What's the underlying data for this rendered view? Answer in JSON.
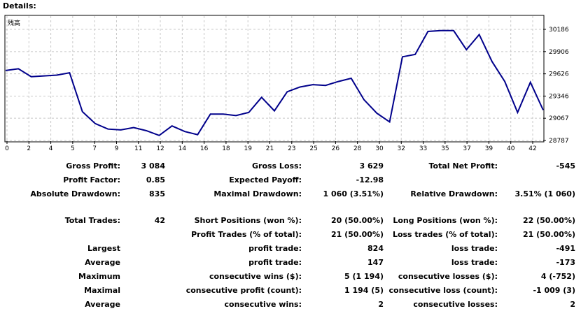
{
  "header": {
    "title": "Details:"
  },
  "chart_data": {
    "type": "line",
    "label": "残高",
    "x": [
      0,
      1,
      2,
      3,
      4,
      5,
      6,
      7,
      8,
      9,
      10,
      11,
      12,
      13,
      14,
      15,
      16,
      17,
      18,
      19,
      20,
      21,
      22,
      23,
      24,
      25,
      26,
      27,
      28,
      29,
      30,
      31,
      32,
      33,
      34,
      35,
      36,
      37,
      38,
      39,
      40,
      41,
      42
    ],
    "values": [
      29668,
      29690,
      29590,
      29600,
      29610,
      29640,
      29150,
      29000,
      28930,
      28920,
      28950,
      28910,
      28850,
      28970,
      28900,
      28860,
      29120,
      29120,
      29100,
      29140,
      29330,
      29160,
      29400,
      29460,
      29490,
      29480,
      29530,
      29570,
      29300,
      29130,
      29020,
      29840,
      29870,
      30160,
      30170,
      30170,
      29930,
      30120,
      29780,
      29530,
      29140,
      29520,
      29170
    ],
    "x_ticks": [
      "0",
      "2",
      "4",
      "5",
      "7",
      "9",
      "11",
      "12",
      "14",
      "16",
      "18",
      "19",
      "21",
      "23",
      "25",
      "26",
      "28",
      "30",
      "32",
      "33",
      "35",
      "37",
      "39",
      "40",
      "42"
    ],
    "y_ticks": [
      "30186",
      "29906",
      "29626",
      "29346",
      "29067",
      "28787"
    ],
    "ylim": [
      28787,
      30186
    ],
    "xlim": [
      0,
      42
    ],
    "grid": true,
    "line_color": "#00008b"
  },
  "stats": {
    "gross_profit_label": "Gross Profit:",
    "gross_profit_value": "3 084",
    "gross_loss_label": "Gross Loss:",
    "gross_loss_value": "3 629",
    "total_net_profit_label": "Total Net Profit:",
    "total_net_profit_value": "-545",
    "profit_factor_label": "Profit Factor:",
    "profit_factor_value": "0.85",
    "expected_payoff_label": "Expected Payoff:",
    "expected_payoff_value": "-12.98",
    "absolute_drawdown_label": "Absolute Drawdown:",
    "absolute_drawdown_value": "835",
    "maximal_drawdown_label": "Maximal Drawdown:",
    "maximal_drawdown_value": "1 060 (3.51%)",
    "relative_drawdown_label": "Relative Drawdown:",
    "relative_drawdown_value": "3.51% (1 060)",
    "total_trades_label": "Total Trades:",
    "total_trades_value": "42",
    "short_positions_label": "Short Positions (won %):",
    "short_positions_value": "20 (50.00%)",
    "long_positions_label": "Long Positions (won %):",
    "long_positions_value": "22 (50.00%)",
    "profit_trades_label": "Profit Trades (% of total):",
    "profit_trades_value": "21 (50.00%)",
    "loss_trades_label": "Loss trades (% of total):",
    "loss_trades_value": "21 (50.00%)",
    "largest_label": "Largest",
    "largest_profit_label": "profit trade:",
    "largest_profit_value": "824",
    "largest_loss_label": "loss trade:",
    "largest_loss_value": "-491",
    "average_label": "Average",
    "average_profit_label": "profit trade:",
    "average_profit_value": "147",
    "average_loss_label": "loss trade:",
    "average_loss_value": "-173",
    "maximum_label": "Maximum",
    "max_consec_wins_label": "consecutive wins ($):",
    "max_consec_wins_value": "5 (1 194)",
    "max_consec_losses_label": "consecutive losses ($):",
    "max_consec_losses_value": "4 (-752)",
    "maximal_label": "Maximal",
    "maximal_consec_profit_label": "consecutive profit (count):",
    "maximal_consec_profit_value": "1 194 (5)",
    "maximal_consec_loss_label": "consecutive loss (count):",
    "maximal_consec_loss_value": "-1 009 (3)",
    "average2_label": "Average",
    "avg_consec_wins_label": "consecutive wins:",
    "avg_consec_wins_value": "2",
    "avg_consec_losses_label": "consecutive losses:",
    "avg_consec_losses_value": "2"
  }
}
